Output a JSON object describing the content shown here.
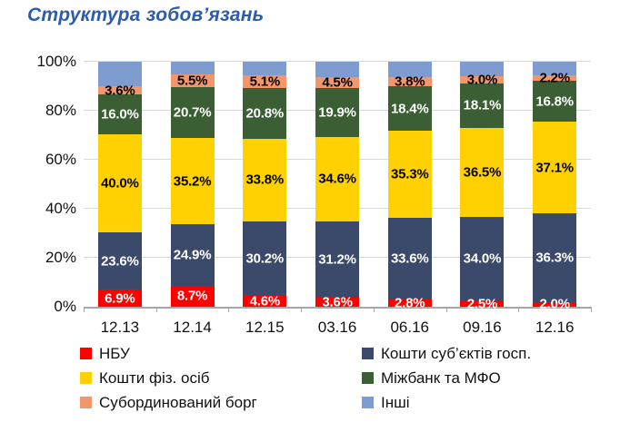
{
  "page": {
    "background": "#ffffff"
  },
  "chart_data": {
    "type": "bar",
    "stacked": true,
    "title": "Структура зобов’язань",
    "title_color": "#2d5caa",
    "categories": [
      "12.13",
      "12.14",
      "12.15",
      "03.16",
      "06.16",
      "09.16",
      "12.16"
    ],
    "series": [
      {
        "name": "НБУ",
        "color": "#fe0000",
        "label_color": "#ffffff",
        "show_labels": true,
        "values": [
          6.9,
          8.7,
          4.6,
          3.6,
          2.8,
          2.5,
          2.0
        ]
      },
      {
        "name": "Кошти суб’єктів госп.",
        "color": "#3b4a6b",
        "label_color": "#ffffff",
        "show_labels": true,
        "values": [
          23.6,
          24.9,
          30.2,
          31.2,
          33.6,
          34.0,
          36.3
        ]
      },
      {
        "name": "Кошти фіз. осіб",
        "color": "#ffd100",
        "label_color": "#000000",
        "show_labels": true,
        "values": [
          40.0,
          35.2,
          33.8,
          34.6,
          35.3,
          36.5,
          37.1
        ]
      },
      {
        "name": "Міжбанк та МФО",
        "color": "#3c5e35",
        "label_color": "#ffffff",
        "show_labels": true,
        "values": [
          16.0,
          20.7,
          20.8,
          19.9,
          18.4,
          18.1,
          16.8
        ]
      },
      {
        "name": "Субординований борг",
        "color": "#f3966a",
        "label_color": "#000000",
        "show_labels": true,
        "values": [
          3.6,
          5.5,
          5.1,
          4.5,
          3.8,
          3.0,
          2.2
        ]
      },
      {
        "name": "Інші",
        "color": "#7e9cd0",
        "label_color": null,
        "show_labels": false,
        "values": [
          9.9,
          5.0,
          5.5,
          6.2,
          6.1,
          5.9,
          5.6
        ]
      }
    ],
    "ylim": [
      0,
      100
    ],
    "yticks": [
      "0%",
      "20%",
      "40%",
      "60%",
      "80%",
      "100%"
    ],
    "label_format": "one-decimal-percent",
    "grid": true,
    "legend_position": "bottom",
    "legend_columns": 2,
    "axis_color": "#a6a6a6",
    "gridline_color": "#d9d9d9"
  }
}
